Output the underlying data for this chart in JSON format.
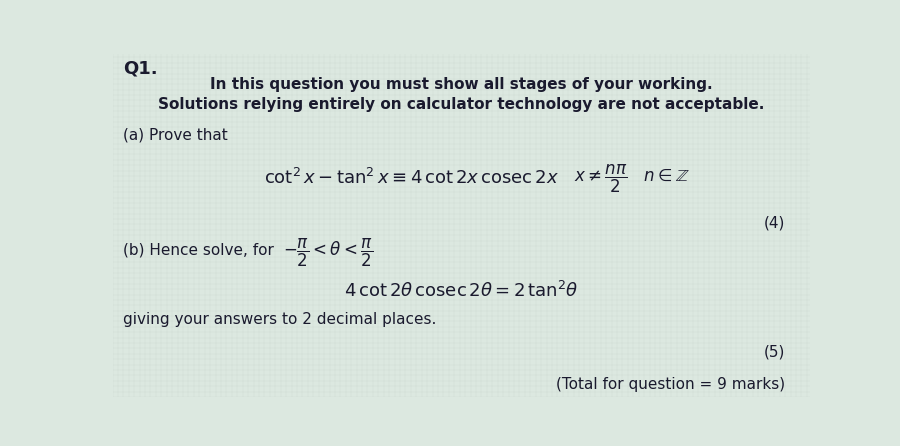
{
  "bg_color": "#dce8e0",
  "text_color": "#1a1a2e",
  "q1_label": "Q1.",
  "line1": "In this question you must show all stages of your working.",
  "line2": "Solutions relying entirely on calculator technology are not acceptable.",
  "part_a_label": "(a) Prove that",
  "marks_a": "(4)",
  "part_b_label": "(b) Hence solve, for",
  "part_b_instruction": "giving your answers to 2 decimal places.",
  "marks_b": "(5)",
  "total": "(Total for question = 9 marks)"
}
